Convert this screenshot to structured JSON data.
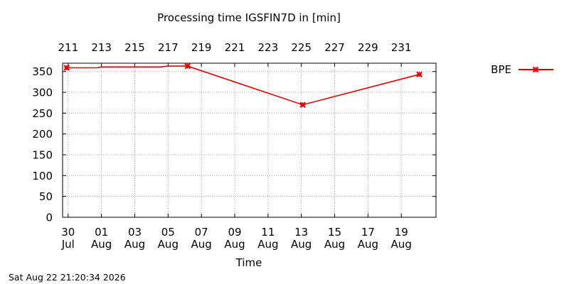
{
  "chart_data": {
    "type": "line",
    "title": "Processing time IGSFIN7D in [min]",
    "xlabel": "Time",
    "ylabel": "",
    "ylim": [
      0,
      370
    ],
    "yticks": [
      0,
      50,
      100,
      150,
      200,
      250,
      300,
      350
    ],
    "x_bottom_ticks": [
      {
        "date": "2026-07-30",
        "day": "30",
        "month": "Jul"
      },
      {
        "date": "2026-08-01",
        "day": "01",
        "month": "Aug"
      },
      {
        "date": "2026-08-03",
        "day": "03",
        "month": "Aug"
      },
      {
        "date": "2026-08-05",
        "day": "05",
        "month": "Aug"
      },
      {
        "date": "2026-08-07",
        "day": "07",
        "month": "Aug"
      },
      {
        "date": "2026-08-09",
        "day": "09",
        "month": "Aug"
      },
      {
        "date": "2026-08-11",
        "day": "11",
        "month": "Aug"
      },
      {
        "date": "2026-08-13",
        "day": "13",
        "month": "Aug"
      },
      {
        "date": "2026-08-15",
        "day": "15",
        "month": "Aug"
      },
      {
        "date": "2026-08-17",
        "day": "17",
        "month": "Aug"
      },
      {
        "date": "2026-08-19",
        "day": "19",
        "month": "Aug"
      }
    ],
    "x_top_ticks": [
      {
        "date": "2026-07-30",
        "label": "211"
      },
      {
        "date": "2026-08-01",
        "label": "213"
      },
      {
        "date": "2026-08-03",
        "label": "215"
      },
      {
        "date": "2026-08-05",
        "label": "217"
      },
      {
        "date": "2026-08-07",
        "label": "219"
      },
      {
        "date": "2026-08-09",
        "label": "221"
      },
      {
        "date": "2026-08-11",
        "label": "223"
      },
      {
        "date": "2026-08-13",
        "label": "225"
      },
      {
        "date": "2026-08-15",
        "label": "227"
      },
      {
        "date": "2026-08-17",
        "label": "229"
      },
      {
        "date": "2026-08-19",
        "label": "231"
      }
    ],
    "xlim": [
      "2026-07-29T16:00",
      "2026-08-21T02:00"
    ],
    "grid": true,
    "legend_position": "top-right outside",
    "series": [
      {
        "name": "BPE",
        "color": "#e00000",
        "marker": "x-cross",
        "points": [
          {
            "x": "2026-07-29T22:00",
            "y": 359,
            "marker": true
          },
          {
            "x": "2026-07-31T18:00",
            "y": 359,
            "marker": false
          },
          {
            "x": "2026-08-01T00:00",
            "y": 361,
            "marker": false
          },
          {
            "x": "2026-08-04T12:00",
            "y": 361,
            "marker": false
          },
          {
            "x": "2026-08-05T00:00",
            "y": 363,
            "marker": false
          },
          {
            "x": "2026-08-06T04:00",
            "y": 363,
            "marker": true
          },
          {
            "x": "2026-08-13T02:00",
            "y": 270,
            "marker": true
          },
          {
            "x": "2026-08-20T02:00",
            "y": 343,
            "marker": true
          }
        ]
      }
    ]
  },
  "footer": {
    "timestamp": "Sat Aug 22 21:20:34 2026"
  }
}
